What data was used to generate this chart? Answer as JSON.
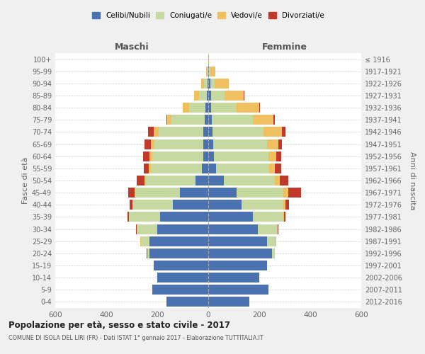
{
  "age_groups": [
    "0-4",
    "5-9",
    "10-14",
    "15-19",
    "20-24",
    "25-29",
    "30-34",
    "35-39",
    "40-44",
    "45-49",
    "50-54",
    "55-59",
    "60-64",
    "65-69",
    "70-74",
    "75-79",
    "80-84",
    "85-89",
    "90-94",
    "95-99",
    "100+"
  ],
  "birth_years": [
    "2012-2016",
    "2007-2011",
    "2002-2006",
    "1997-2001",
    "1992-1996",
    "1987-1991",
    "1982-1986",
    "1977-1981",
    "1972-1976",
    "1967-1971",
    "1962-1966",
    "1957-1961",
    "1952-1956",
    "1947-1951",
    "1942-1946",
    "1937-1941",
    "1932-1936",
    "1927-1931",
    "1922-1926",
    "1917-1921",
    "≤ 1916"
  ],
  "colors": {
    "celibi": "#4a72b0",
    "coniugati": "#c5d9a0",
    "vedovi": "#f0c060",
    "divorziati": "#c0392b"
  },
  "male": {
    "celibi": [
      165,
      220,
      200,
      215,
      230,
      230,
      200,
      190,
      140,
      110,
      50,
      25,
      20,
      20,
      20,
      15,
      10,
      5,
      3,
      1,
      0
    ],
    "coniugati": [
      0,
      0,
      0,
      0,
      10,
      35,
      80,
      120,
      155,
      175,
      195,
      200,
      200,
      190,
      175,
      130,
      65,
      30,
      15,
      3,
      0
    ],
    "vedovi": [
      0,
      0,
      0,
      0,
      0,
      1,
      1,
      1,
      2,
      3,
      5,
      8,
      10,
      15,
      20,
      15,
      25,
      20,
      10,
      3,
      0
    ],
    "divorziati": [
      0,
      0,
      0,
      0,
      1,
      2,
      3,
      5,
      10,
      25,
      30,
      20,
      25,
      25,
      20,
      5,
      0,
      0,
      0,
      0,
      0
    ]
  },
  "female": {
    "celibi": [
      160,
      235,
      200,
      230,
      250,
      230,
      195,
      175,
      130,
      110,
      60,
      30,
      22,
      20,
      18,
      15,
      10,
      10,
      8,
      3,
      1
    ],
    "coniugati": [
      0,
      0,
      0,
      0,
      10,
      35,
      75,
      120,
      165,
      185,
      200,
      210,
      215,
      210,
      200,
      160,
      100,
      55,
      18,
      5,
      0
    ],
    "vedovi": [
      0,
      0,
      0,
      0,
      1,
      1,
      2,
      3,
      8,
      20,
      20,
      20,
      30,
      45,
      70,
      80,
      90,
      75,
      55,
      20,
      2
    ],
    "divorziati": [
      0,
      0,
      0,
      0,
      1,
      1,
      3,
      5,
      15,
      50,
      35,
      25,
      20,
      15,
      15,
      5,
      2,
      2,
      0,
      0,
      0
    ]
  },
  "title": "Popolazione per età, sesso e stato civile - 2017",
  "subtitle": "COMUNE DI ISOLA DEL LIRI (FR) - Dati ISTAT 1° gennaio 2017 - Elaborazione TUTTITALIA.IT",
  "ylabel_left": "Fasce di età",
  "ylabel_right": "Anni di nascita",
  "xlabel_left": "Maschi",
  "xlabel_right": "Femmine",
  "xlim": 600,
  "bg_color": "#f0f0f0",
  "bar_bg_color": "#ffffff",
  "grid_color": "#cccccc"
}
